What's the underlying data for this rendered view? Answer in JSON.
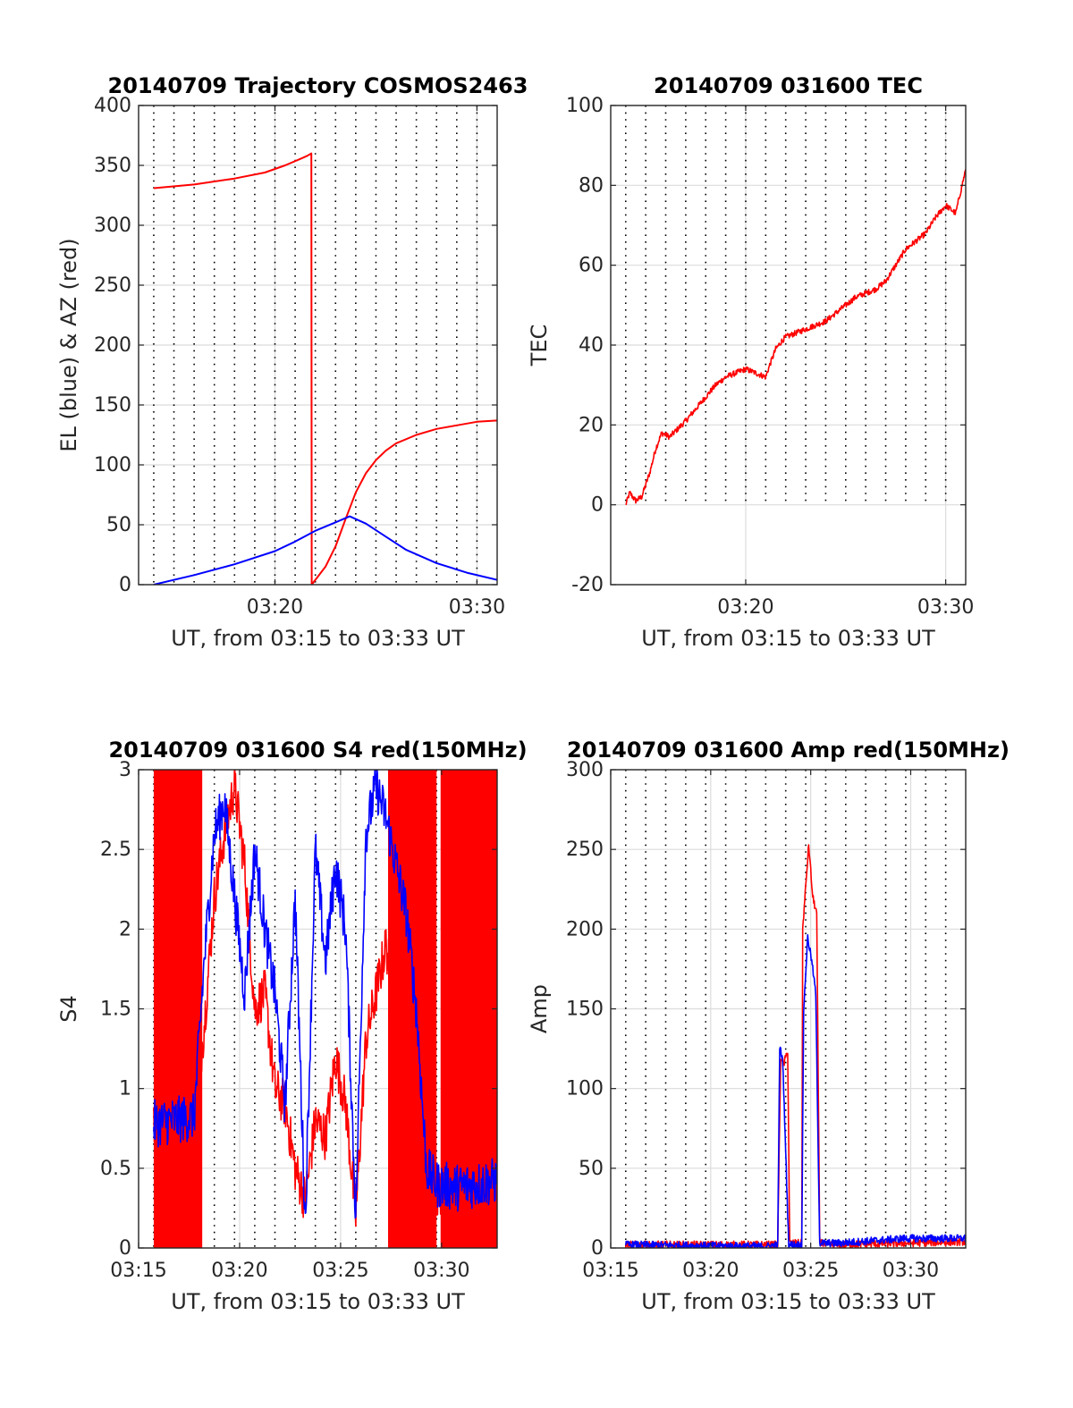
{
  "chart_data": [
    {
      "id": "trajectory",
      "type": "line",
      "title": "20140709 Trajectory COSMOS2463",
      "xlabel": "UT, from 03:15 to 03:33 UT",
      "ylabel": "EL (blue) & AZ (red)",
      "xlim": [
        3.25,
        21.0
      ],
      "ylim": [
        0,
        400
      ],
      "xticks": [
        {
          "v": 10,
          "label": "03:20"
        },
        {
          "v": 20,
          "label": "03:30"
        }
      ],
      "yticks": [
        {
          "v": 0,
          "label": "0"
        },
        {
          "v": 50,
          "label": "50"
        },
        {
          "v": 100,
          "label": "100"
        },
        {
          "v": 150,
          "label": "150"
        },
        {
          "v": 200,
          "label": "200"
        },
        {
          "v": 250,
          "label": "250"
        },
        {
          "v": 300,
          "label": "300"
        },
        {
          "v": 350,
          "label": "350"
        },
        {
          "v": 400,
          "label": "400"
        }
      ],
      "grid": true,
      "minor_grid_x_step": 1,
      "series": [
        {
          "color": "#ff0000",
          "x": [
            4.0,
            6.0,
            8.0,
            9.5,
            10.5,
            11.2,
            11.6,
            11.8,
            11.82,
            12.0,
            12.5,
            13.0,
            13.5,
            14.0,
            14.5,
            15.0,
            15.5,
            16.0,
            17.0,
            18.0,
            19.0,
            20.0,
            21.0
          ],
          "y": [
            331,
            334,
            339,
            344,
            350,
            355,
            358,
            360,
            0,
            4,
            15,
            32,
            55,
            77,
            93,
            104,
            112,
            118,
            125,
            130,
            133,
            136,
            137
          ]
        },
        {
          "color": "#0000ff",
          "x": [
            4.0,
            6.0,
            8.0,
            10.0,
            11.0,
            12.0,
            13.0,
            13.7,
            14.5,
            15.5,
            16.5,
            18.0,
            19.5,
            21.0
          ],
          "y": [
            0,
            8,
            17,
            28,
            36,
            45,
            52,
            57,
            51,
            40,
            29,
            18,
            10,
            4
          ]
        }
      ]
    },
    {
      "id": "tec",
      "type": "line",
      "title": "20140709 031600 TEC",
      "xlabel": "UT, from 03:15 to 03:33 UT",
      "ylabel": "TEC",
      "xlim": [
        3.25,
        21.0
      ],
      "ylim": [
        -20,
        100
      ],
      "xticks": [
        {
          "v": 10,
          "label": "03:20"
        },
        {
          "v": 20,
          "label": "03:30"
        }
      ],
      "yticks": [
        {
          "v": -20,
          "label": "-20"
        },
        {
          "v": 0,
          "label": "0"
        },
        {
          "v": 20,
          "label": "20"
        },
        {
          "v": 40,
          "label": "40"
        },
        {
          "v": 60,
          "label": "60"
        },
        {
          "v": 80,
          "label": "80"
        },
        {
          "v": 100,
          "label": "100"
        }
      ],
      "grid": true,
      "minor_grid_x_step": 1,
      "minor_grid_y_min": 0,
      "series": [
        {
          "color": "#ff0000",
          "x": [
            4.0,
            4.2,
            4.5,
            4.8,
            5.2,
            5.5,
            5.8,
            6.2,
            6.6,
            7.0,
            7.5,
            8.0,
            8.5,
            9.0,
            9.5,
            10.0,
            10.5,
            11.0,
            11.2,
            11.5,
            11.8,
            12.0,
            12.5,
            13.0,
            13.5,
            14.0,
            14.5,
            15.0,
            15.5,
            16.0,
            16.5,
            17.0,
            17.5,
            18.0,
            18.5,
            19.0,
            19.5,
            20.0,
            20.5,
            21.0
          ],
          "y": [
            0,
            3,
            1,
            2,
            8,
            14,
            18,
            17,
            19,
            21,
            24,
            27,
            30,
            32,
            33,
            34,
            33,
            32,
            35,
            39,
            41,
            42,
            43,
            44,
            45,
            46,
            48,
            50,
            52,
            53,
            54,
            56,
            60,
            64,
            66,
            68,
            72,
            75,
            73,
            84
          ]
        }
      ]
    },
    {
      "id": "s4",
      "type": "line",
      "title": "20140709 031600 S4 red(150MHz)",
      "xlabel": "UT, from 03:15 to 03:33 UT",
      "ylabel": "S4",
      "xlim": [
        3.25,
        21.0
      ],
      "ylim": [
        0,
        3
      ],
      "xticks": [
        {
          "v": 0,
          "label": "03:15"
        },
        {
          "v": 5,
          "label": "03:20"
        },
        {
          "v": 10,
          "label": "03:25"
        },
        {
          "v": 15,
          "label": "03:30"
        }
      ],
      "yticks": [
        {
          "v": 0,
          "label": "0"
        },
        {
          "v": 0.5,
          "label": "0.5"
        },
        {
          "v": 1,
          "label": "1"
        },
        {
          "v": 1.5,
          "label": "1.5"
        },
        {
          "v": 2,
          "label": "2"
        },
        {
          "v": 2.5,
          "label": "2.5"
        },
        {
          "v": 3,
          "label": "3"
        }
      ],
      "tick_x_offset": 3.25,
      "grid": true,
      "minor_grid_x_step": 1,
      "series": [
        {
          "color": "#ff0000",
          "x": [
            4.0,
            6.0,
            6.5,
            7.0,
            7.5,
            8.0,
            8.5,
            9.0,
            9.5,
            10.0,
            10.5,
            11.0,
            11.5,
            12.0,
            12.5,
            13.0,
            13.5,
            14.0,
            14.5,
            15.0,
            15.5,
            16.0,
            16.5,
            17.0,
            17.5,
            18.0,
            21.0
          ],
          "y": [
            0.75,
            0.8,
            1.4,
            2.2,
            2.6,
            2.9,
            2.4,
            1.5,
            1.6,
            1.0,
            0.9,
            0.5,
            0.3,
            0.8,
            0.7,
            1.2,
            0.9,
            0.2,
            1.3,
            1.6,
            1.9,
            1.5,
            1.8,
            2.2,
            1.4,
            0.35,
            0.35
          ]
        },
        {
          "color": "#0000ff",
          "x": [
            4.0,
            5.0,
            6.0,
            6.5,
            7.0,
            7.5,
            8.0,
            8.5,
            9.0,
            9.5,
            10.0,
            10.5,
            11.0,
            11.5,
            12.0,
            12.5,
            13.0,
            13.5,
            14.0,
            14.5,
            15.0,
            15.5,
            16.0,
            16.5,
            17.0,
            17.5,
            18.0,
            19.0,
            20.0,
            21.0
          ],
          "y": [
            0.78,
            0.8,
            0.82,
            1.8,
            2.6,
            2.8,
            2.2,
            1.6,
            2.5,
            2.0,
            1.6,
            0.9,
            2.2,
            0.15,
            2.5,
            1.8,
            2.4,
            2.0,
            0.2,
            2.6,
            2.9,
            2.7,
            2.4,
            2.1,
            1.5,
            0.5,
            0.4,
            0.38,
            0.4,
            0.42
          ]
        }
      ],
      "fill_red_bands": [
        [
          4.0,
          6.4
        ],
        [
          15.6,
          18.0
        ],
        [
          18.2,
          21.0
        ]
      ]
    },
    {
      "id": "amp",
      "type": "line",
      "title": "20140709 031600 Amp red(150MHz)",
      "xlabel": "UT, from 03:15 to 03:33 UT",
      "ylabel": "Amp",
      "xlim": [
        3.25,
        21.0
      ],
      "ylim": [
        0,
        300
      ],
      "xticks": [
        {
          "v": 0,
          "label": "03:15"
        },
        {
          "v": 5,
          "label": "03:20"
        },
        {
          "v": 10,
          "label": "03:25"
        },
        {
          "v": 15,
          "label": "03:30"
        }
      ],
      "yticks": [
        {
          "v": 0,
          "label": "0"
        },
        {
          "v": 50,
          "label": "50"
        },
        {
          "v": 100,
          "label": "100"
        },
        {
          "v": 150,
          "label": "150"
        },
        {
          "v": 200,
          "label": "200"
        },
        {
          "v": 250,
          "label": "250"
        },
        {
          "v": 300,
          "label": "300"
        }
      ],
      "tick_x_offset": 3.25,
      "grid": true,
      "minor_grid_x_step": 1,
      "series": [
        {
          "color": "#ff0000",
          "x": [
            4.0,
            11.0,
            11.6,
            11.75,
            11.9,
            12.1,
            12.2,
            12.8,
            12.85,
            13.15,
            13.35,
            13.55,
            13.7,
            13.9,
            14.6,
            21.0
          ],
          "y": [
            2,
            2,
            2,
            120,
            115,
            124,
            3,
            3,
            200,
            253,
            220,
            210,
            5,
            2,
            2,
            4
          ]
        },
        {
          "color": "#0000ff",
          "x": [
            4.0,
            11.0,
            11.6,
            11.7,
            11.85,
            12.0,
            12.15,
            12.8,
            12.9,
            13.1,
            13.3,
            13.5,
            13.7,
            14.6,
            18.0,
            21.0
          ],
          "y": [
            2,
            1,
            2,
            126,
            118,
            60,
            2,
            2,
            150,
            195,
            180,
            160,
            3,
            3,
            6,
            6
          ]
        }
      ]
    }
  ]
}
